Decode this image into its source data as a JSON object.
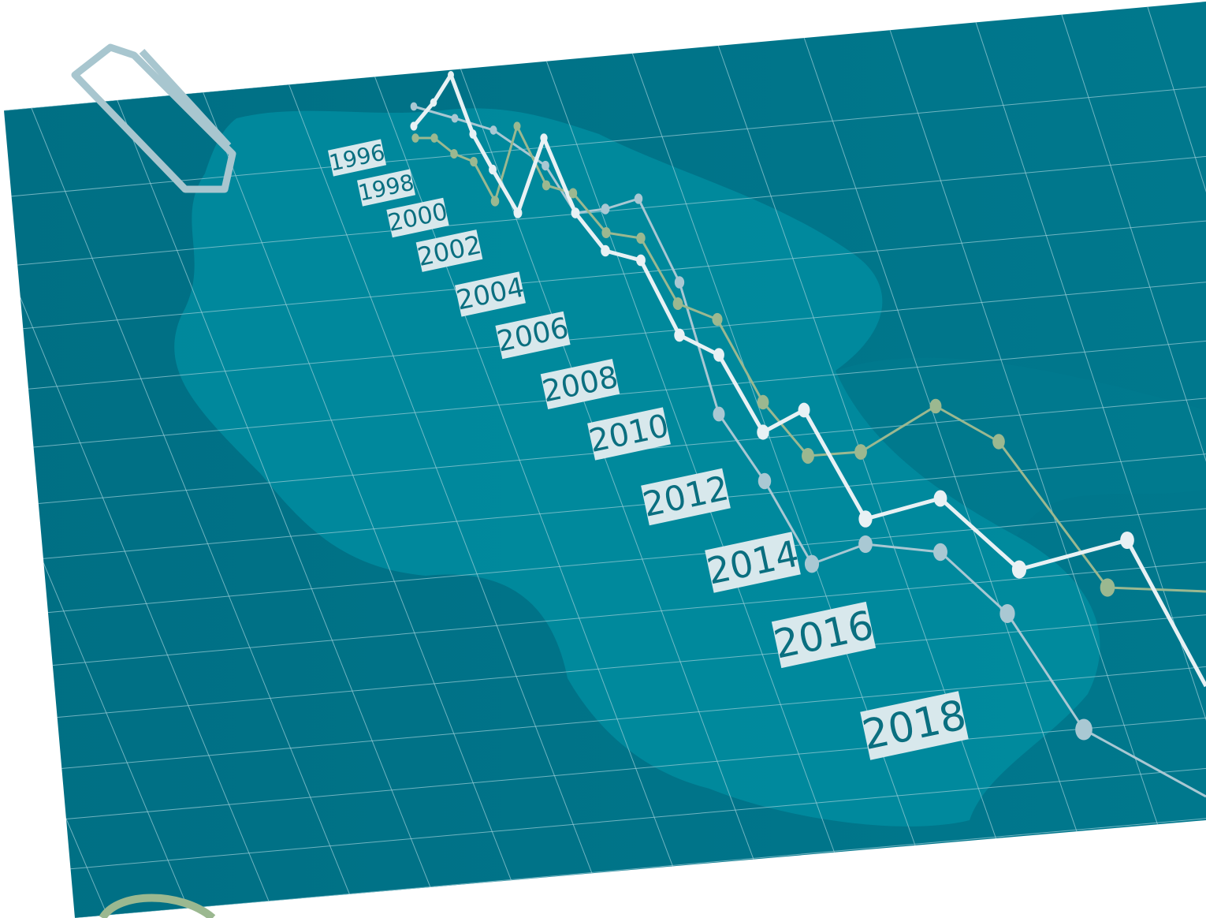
{
  "year_labels": [
    "1996",
    "1998",
    "2000",
    "2002",
    "2004",
    "2006",
    "2008",
    "2010",
    "2012",
    "2014",
    "2016",
    "2018"
  ]
}
